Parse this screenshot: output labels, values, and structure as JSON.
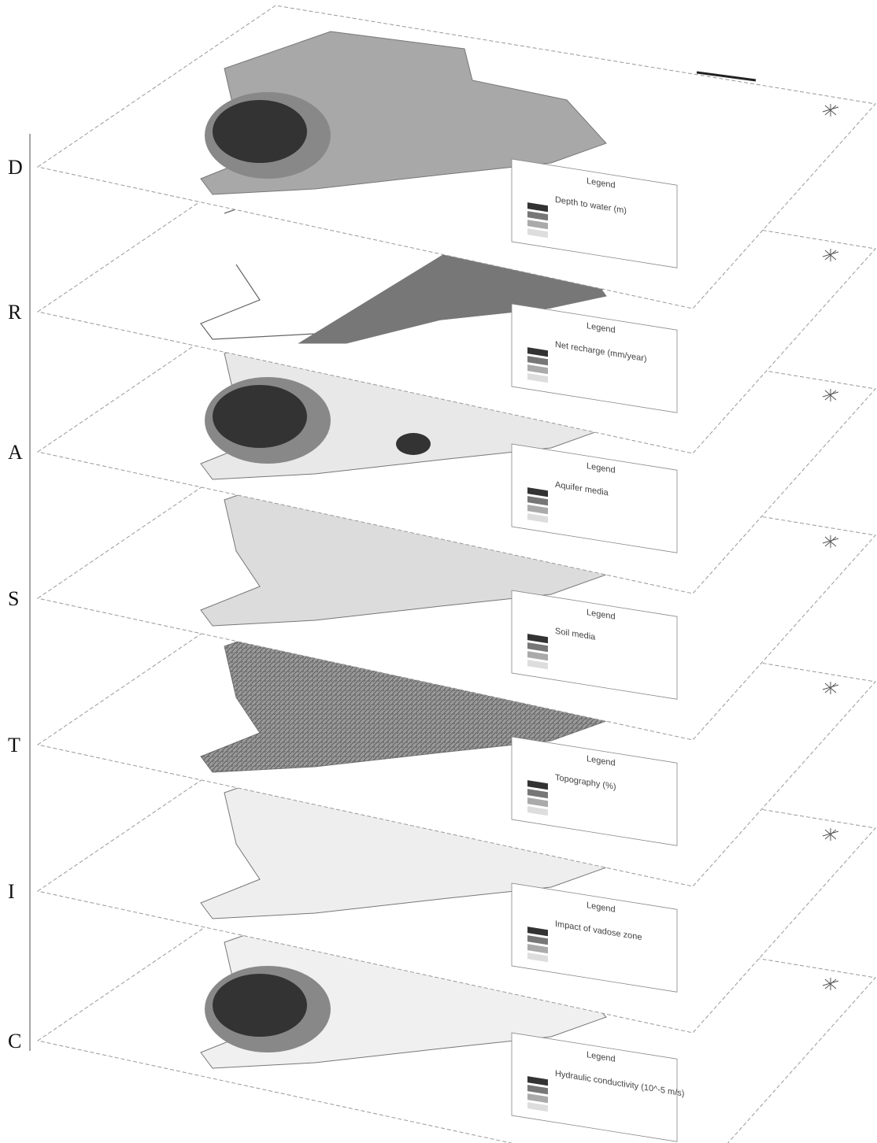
{
  "layers": [
    {
      "letter": "D",
      "legend_title": "Legend",
      "legend_subtitle": "Depth to water (m)"
    },
    {
      "letter": "R",
      "legend_title": "Legend",
      "legend_subtitle": "Net recharge (mm/year)"
    },
    {
      "letter": "A",
      "legend_title": "Legend",
      "legend_subtitle": "Aquifer media"
    },
    {
      "letter": "S",
      "legend_title": "Legend",
      "legend_subtitle": "Soil media"
    },
    {
      "letter": "T",
      "legend_title": "Legend",
      "legend_subtitle": "Topography (%)"
    },
    {
      "letter": "I",
      "legend_title": "Legend",
      "legend_subtitle": "Impact of vadose zone"
    },
    {
      "letter": "C",
      "legend_title": "Legend",
      "legend_subtitle": "Hydraulic conductivity (10^-5 m/s)"
    }
  ]
}
